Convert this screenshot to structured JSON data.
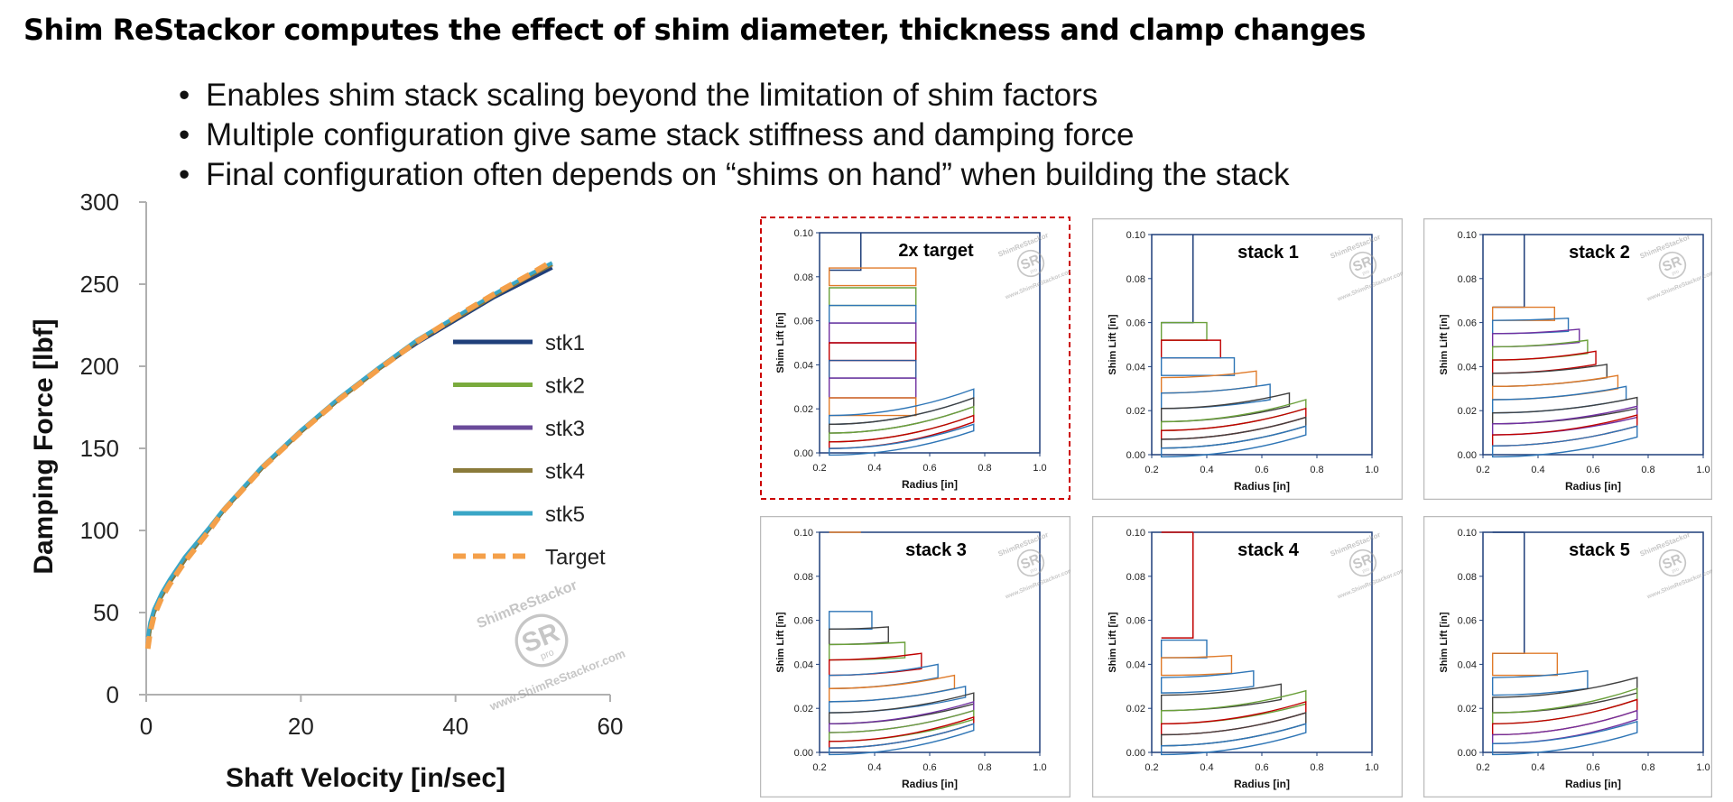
{
  "slide": {
    "title": "Shim ReStackor computes the effect of shim diameter, thickness and clamp changes",
    "bullets": [
      "Enables shim stack scaling beyond the limitation of shim factors",
      "Multiple configuration give same stack stiffness and damping force",
      "Final configuration often depends on “shims on hand” when building the stack"
    ]
  },
  "watermark": {
    "brand": "ShimReStackor",
    "url": "www.ShimReStackor.com",
    "logo_text": "SR",
    "logo_sub": "pro"
  },
  "colors": {
    "stk1": "#1f3f7a",
    "stk2": "#7aab3d",
    "stk3": "#6a4a9a",
    "stk4": "#8a7a3a",
    "stk5": "#3aa6c6",
    "target": "#f4a04a",
    "selected_border": "#cc0000",
    "panel_border": "#bbbbbb",
    "axis": "#1f3f7a"
  },
  "chart_data": [
    {
      "type": "line",
      "title": "",
      "xlabel": "Shaft Velocity [in/sec]",
      "ylabel": "Damping Force [lbf]",
      "xlim": [
        0,
        60
      ],
      "ylim": [
        0,
        300
      ],
      "xticks": [
        0,
        20,
        40,
        60
      ],
      "yticks": [
        0,
        50,
        100,
        150,
        200,
        250,
        300
      ],
      "grid": false,
      "legend_position": "right",
      "series": [
        {
          "name": "stk1",
          "x": [
            0.2,
            0.5,
            1,
            2,
            3,
            5,
            8,
            10,
            15,
            20,
            25,
            30,
            35,
            40,
            45,
            50,
            52.5
          ],
          "y": [
            30,
            40,
            50,
            60,
            68,
            82,
            100,
            112,
            138,
            160,
            180,
            198,
            214,
            228,
            242,
            254,
            260
          ]
        },
        {
          "name": "stk2",
          "x": [
            0.2,
            0.5,
            1,
            2,
            3,
            5,
            8,
            10,
            15,
            20,
            25,
            30,
            35,
            40,
            45,
            50,
            52.5
          ],
          "y": [
            30,
            40,
            50,
            60,
            68,
            82,
            100,
            112,
            138,
            160,
            180,
            198,
            215,
            229,
            243,
            256,
            262
          ]
        },
        {
          "name": "stk3",
          "x": [
            0.2,
            0.5,
            1,
            2,
            3,
            5,
            8,
            10,
            15,
            20,
            25,
            30,
            35,
            40,
            45,
            50,
            52.5
          ],
          "y": [
            31,
            41,
            50,
            60,
            68,
            82,
            100,
            112,
            138,
            160,
            180,
            198,
            215,
            229,
            243,
            256,
            262
          ]
        },
        {
          "name": "stk4",
          "x": [
            0.2,
            0.5,
            1,
            2,
            3,
            5,
            8,
            10,
            15,
            20,
            25,
            30,
            35,
            40,
            45,
            50,
            52.5
          ],
          "y": [
            31,
            41,
            50,
            60,
            68,
            82,
            100,
            112,
            138,
            160,
            180,
            198,
            215,
            229,
            243,
            256,
            262
          ]
        },
        {
          "name": "stk5",
          "x": [
            0.2,
            0.5,
            1,
            2,
            3,
            5,
            8,
            10,
            15,
            20,
            25,
            30,
            35,
            40,
            45,
            50,
            52.5
          ],
          "y": [
            35,
            44,
            52,
            62,
            70,
            84,
            101,
            113,
            139,
            161,
            181,
            199,
            216,
            230,
            244,
            257,
            263
          ]
        },
        {
          "name": "Target",
          "dashed": true,
          "x": [
            0.2,
            0.5,
            1,
            2,
            3,
            5,
            8,
            10,
            15,
            20,
            25,
            30,
            35,
            40,
            45,
            50,
            52.5
          ],
          "y": [
            28,
            38,
            48,
            59,
            67,
            81,
            99,
            112,
            138,
            160,
            180,
            198,
            215,
            230,
            244,
            257,
            264
          ]
        }
      ]
    },
    {
      "type": "line",
      "title": "2x target",
      "selected": true,
      "xlabel": "Radius [in]",
      "ylabel": "Shim Lift [in]",
      "xlim": [
        0.2,
        1.0
      ],
      "ylim": [
        0,
        0.1
      ],
      "xticks": [
        0.2,
        0.4,
        0.6,
        0.8,
        1.0
      ],
      "yticks": [
        0.0,
        0.02,
        0.04,
        0.06,
        0.08,
        0.1
      ],
      "clamp_radius": 0.35,
      "clamp_top": 0.083,
      "shims": [
        {
          "r": 0.55,
          "y0": 0.076,
          "y1": 0.084,
          "color": "#e07b2a"
        },
        {
          "r": 0.55,
          "y0": 0.067,
          "y1": 0.075,
          "color": "#6aa03a"
        },
        {
          "r": 0.55,
          "y0": 0.059,
          "y1": 0.067,
          "color": "#2e75b6"
        },
        {
          "r": 0.55,
          "y0": 0.05,
          "y1": 0.059,
          "color": "#7030a0"
        },
        {
          "r": 0.55,
          "y0": 0.042,
          "y1": 0.05,
          "color": "#c00000"
        },
        {
          "r": 0.55,
          "y0": 0.034,
          "y1": 0.042,
          "color": "#2f5597"
        },
        {
          "r": 0.55,
          "y0": 0.025,
          "y1": 0.034,
          "color": "#7030a0"
        },
        {
          "r": 0.55,
          "y0": 0.017,
          "y1": 0.025,
          "color": "#e07b2a"
        },
        {
          "r": 0.76,
          "y0": 0.013,
          "y1": 0.017,
          "tip": 0.029,
          "color": "#2e75b6"
        },
        {
          "r": 0.76,
          "y0": 0.009,
          "y1": 0.013,
          "tip": 0.025,
          "color": "#404040"
        },
        {
          "r": 0.76,
          "y0": 0.005,
          "y1": 0.009,
          "tip": 0.021,
          "color": "#6aa03a"
        },
        {
          "r": 0.76,
          "y0": 0.002,
          "y1": 0.005,
          "tip": 0.017,
          "color": "#c00000"
        },
        {
          "r": 0.76,
          "y0": -0.001,
          "y1": 0.002,
          "tip": 0.013,
          "color": "#2e75b6"
        }
      ]
    },
    {
      "type": "line",
      "title": "stack 1",
      "xlabel": "Radius [in]",
      "ylabel": "Shim Lift [in]",
      "xlim": [
        0.2,
        1.0
      ],
      "ylim": [
        0,
        0.1
      ],
      "xticks": [
        0.2,
        0.4,
        0.6,
        0.8,
        1.0
      ],
      "yticks": [
        0.0,
        0.02,
        0.04,
        0.06,
        0.08,
        0.1
      ],
      "clamp_radius": 0.35,
      "clamp_top": 0.06,
      "shims": [
        {
          "r": 0.4,
          "y0": 0.052,
          "y1": 0.06,
          "tip": 0.06,
          "color": "#6aa03a"
        },
        {
          "r": 0.45,
          "y0": 0.044,
          "y1": 0.052,
          "tip": 0.052,
          "color": "#c00000"
        },
        {
          "r": 0.5,
          "y0": 0.036,
          "y1": 0.044,
          "tip": 0.044,
          "color": "#2e75b6"
        },
        {
          "r": 0.58,
          "y0": 0.028,
          "y1": 0.035,
          "tip": 0.038,
          "color": "#e07b2a"
        },
        {
          "r": 0.63,
          "y0": 0.021,
          "y1": 0.028,
          "tip": 0.032,
          "color": "#2e75b6"
        },
        {
          "r": 0.7,
          "y0": 0.015,
          "y1": 0.021,
          "tip": 0.028,
          "color": "#404040"
        },
        {
          "r": 0.76,
          "y0": 0.011,
          "y1": 0.015,
          "tip": 0.025,
          "color": "#6aa03a"
        },
        {
          "r": 0.76,
          "y0": 0.007,
          "y1": 0.011,
          "tip": 0.021,
          "color": "#c00000"
        },
        {
          "r": 0.76,
          "y0": 0.003,
          "y1": 0.007,
          "tip": 0.017,
          "color": "#404040"
        },
        {
          "r": 0.76,
          "y0": -0.001,
          "y1": 0.003,
          "tip": 0.013,
          "color": "#2e75b6"
        }
      ]
    },
    {
      "type": "line",
      "title": "stack 2",
      "xlabel": "Radius [in]",
      "ylabel": "Shim Lift [in]",
      "xlim": [
        0.2,
        1.0
      ],
      "ylim": [
        0,
        0.1
      ],
      "xticks": [
        0.2,
        0.4,
        0.6,
        0.8,
        1.0
      ],
      "yticks": [
        0.0,
        0.02,
        0.04,
        0.06,
        0.08,
        0.1
      ],
      "clamp_radius": 0.35,
      "clamp_top": 0.067,
      "shims": [
        {
          "r": 0.46,
          "y0": 0.061,
          "y1": 0.067,
          "tip": 0.067,
          "color": "#e07b2a"
        },
        {
          "r": 0.51,
          "y0": 0.055,
          "y1": 0.061,
          "tip": 0.062,
          "color": "#2e75b6"
        },
        {
          "r": 0.55,
          "y0": 0.049,
          "y1": 0.055,
          "tip": 0.057,
          "color": "#7030a0"
        },
        {
          "r": 0.58,
          "y0": 0.043,
          "y1": 0.049,
          "tip": 0.052,
          "color": "#6aa03a"
        },
        {
          "r": 0.61,
          "y0": 0.037,
          "y1": 0.043,
          "tip": 0.047,
          "color": "#c00000"
        },
        {
          "r": 0.65,
          "y0": 0.031,
          "y1": 0.037,
          "tip": 0.041,
          "color": "#404040"
        },
        {
          "r": 0.69,
          "y0": 0.025,
          "y1": 0.031,
          "tip": 0.036,
          "color": "#e07b2a"
        },
        {
          "r": 0.72,
          "y0": 0.019,
          "y1": 0.025,
          "tip": 0.031,
          "color": "#2e75b6"
        },
        {
          "r": 0.76,
          "y0": 0.014,
          "y1": 0.019,
          "tip": 0.026,
          "color": "#404040"
        },
        {
          "r": 0.76,
          "y0": 0.009,
          "y1": 0.014,
          "tip": 0.022,
          "color": "#7030a0"
        },
        {
          "r": 0.76,
          "y0": 0.004,
          "y1": 0.009,
          "tip": 0.018,
          "color": "#c00000"
        },
        {
          "r": 0.76,
          "y0": -0.001,
          "y1": 0.004,
          "tip": 0.013,
          "color": "#2e75b6"
        }
      ]
    },
    {
      "type": "line",
      "title": "stack 3",
      "xlabel": "Radius [in]",
      "ylabel": "Shim Lift [in]",
      "xlim": [
        0.2,
        1.0
      ],
      "ylim": [
        0,
        0.1
      ],
      "xticks": [
        0.2,
        0.4,
        0.6,
        0.8,
        1.0
      ],
      "yticks": [
        0.0,
        0.02,
        0.04,
        0.06,
        0.08,
        0.1
      ],
      "clamp_radius": 0.35,
      "clamp_top": 0.1,
      "clamp_color": "#e07b2a",
      "shims": [
        {
          "r": 0.39,
          "y0": 0.056,
          "y1": 0.064,
          "tip": 0.064,
          "color": "#2e75b6"
        },
        {
          "r": 0.45,
          "y0": 0.049,
          "y1": 0.056,
          "tip": 0.057,
          "color": "#404040"
        },
        {
          "r": 0.51,
          "y0": 0.042,
          "y1": 0.049,
          "tip": 0.05,
          "color": "#6aa03a"
        },
        {
          "r": 0.57,
          "y0": 0.035,
          "y1": 0.042,
          "tip": 0.045,
          "color": "#c00000"
        },
        {
          "r": 0.63,
          "y0": 0.029,
          "y1": 0.035,
          "tip": 0.04,
          "color": "#2e75b6"
        },
        {
          "r": 0.69,
          "y0": 0.023,
          "y1": 0.029,
          "tip": 0.035,
          "color": "#e07b2a"
        },
        {
          "r": 0.73,
          "y0": 0.018,
          "y1": 0.023,
          "tip": 0.03,
          "color": "#2e75b6"
        },
        {
          "r": 0.76,
          "y0": 0.013,
          "y1": 0.018,
          "tip": 0.027,
          "color": "#404040"
        },
        {
          "r": 0.76,
          "y0": 0.009,
          "y1": 0.013,
          "tip": 0.023,
          "color": "#7030a0"
        },
        {
          "r": 0.76,
          "y0": 0.005,
          "y1": 0.009,
          "tip": 0.019,
          "color": "#6aa03a"
        },
        {
          "r": 0.76,
          "y0": 0.002,
          "y1": 0.005,
          "tip": 0.016,
          "color": "#c00000"
        },
        {
          "r": 0.76,
          "y0": -0.001,
          "y1": 0.002,
          "tip": 0.013,
          "color": "#2e75b6"
        }
      ]
    },
    {
      "type": "line",
      "title": "stack 4",
      "xlabel": "Radius [in]",
      "ylabel": "Shim Lift [in]",
      "xlim": [
        0.2,
        1.0
      ],
      "ylim": [
        0,
        0.1
      ],
      "xticks": [
        0.2,
        0.4,
        0.6,
        0.8,
        1.0
      ],
      "yticks": [
        0.0,
        0.02,
        0.04,
        0.06,
        0.08,
        0.1
      ],
      "clamp_radius": 0.35,
      "clamp_top": 0.1,
      "clamp_color": "#c00000",
      "clamp_step": 0.052,
      "shims": [
        {
          "r": 0.4,
          "y0": 0.043,
          "y1": 0.051,
          "tip": 0.051,
          "color": "#2e75b6"
        },
        {
          "r": 0.49,
          "y0": 0.035,
          "y1": 0.043,
          "tip": 0.044,
          "color": "#e07b2a"
        },
        {
          "r": 0.57,
          "y0": 0.027,
          "y1": 0.034,
          "tip": 0.037,
          "color": "#2e75b6"
        },
        {
          "r": 0.67,
          "y0": 0.019,
          "y1": 0.026,
          "tip": 0.031,
          "color": "#404040"
        },
        {
          "r": 0.76,
          "y0": 0.013,
          "y1": 0.019,
          "tip": 0.028,
          "color": "#6aa03a"
        },
        {
          "r": 0.76,
          "y0": 0.008,
          "y1": 0.013,
          "tip": 0.023,
          "color": "#c00000"
        },
        {
          "r": 0.76,
          "y0": 0.003,
          "y1": 0.008,
          "tip": 0.018,
          "color": "#404040"
        },
        {
          "r": 0.76,
          "y0": -0.001,
          "y1": 0.003,
          "tip": 0.013,
          "color": "#2e75b6"
        }
      ]
    },
    {
      "type": "line",
      "title": "stack 5",
      "xlabel": "Radius [in]",
      "ylabel": "Shim Lift [in]",
      "xlim": [
        0.2,
        1.0
      ],
      "ylim": [
        0,
        0.1
      ],
      "xticks": [
        0.2,
        0.4,
        0.6,
        0.8,
        1.0
      ],
      "yticks": [
        0.0,
        0.02,
        0.04,
        0.06,
        0.08,
        0.1
      ],
      "clamp_radius": 0.35,
      "clamp_top": 0.1,
      "clamp_step": 0.045,
      "shims": [
        {
          "r": 0.47,
          "y0": 0.035,
          "y1": 0.045,
          "tip": 0.045,
          "color": "#e07b2a"
        },
        {
          "r": 0.58,
          "y0": 0.026,
          "y1": 0.034,
          "tip": 0.037,
          "color": "#2e75b6"
        },
        {
          "r": 0.76,
          "y0": 0.018,
          "y1": 0.025,
          "tip": 0.034,
          "color": "#404040"
        },
        {
          "r": 0.76,
          "y0": 0.013,
          "y1": 0.018,
          "tip": 0.029,
          "color": "#6aa03a"
        },
        {
          "r": 0.76,
          "y0": 0.008,
          "y1": 0.013,
          "tip": 0.024,
          "color": "#c00000"
        },
        {
          "r": 0.76,
          "y0": 0.004,
          "y1": 0.008,
          "tip": 0.019,
          "color": "#7030a0"
        },
        {
          "r": 0.76,
          "y0": -0.001,
          "y1": 0.004,
          "tip": 0.014,
          "color": "#2e75b6"
        }
      ]
    }
  ]
}
